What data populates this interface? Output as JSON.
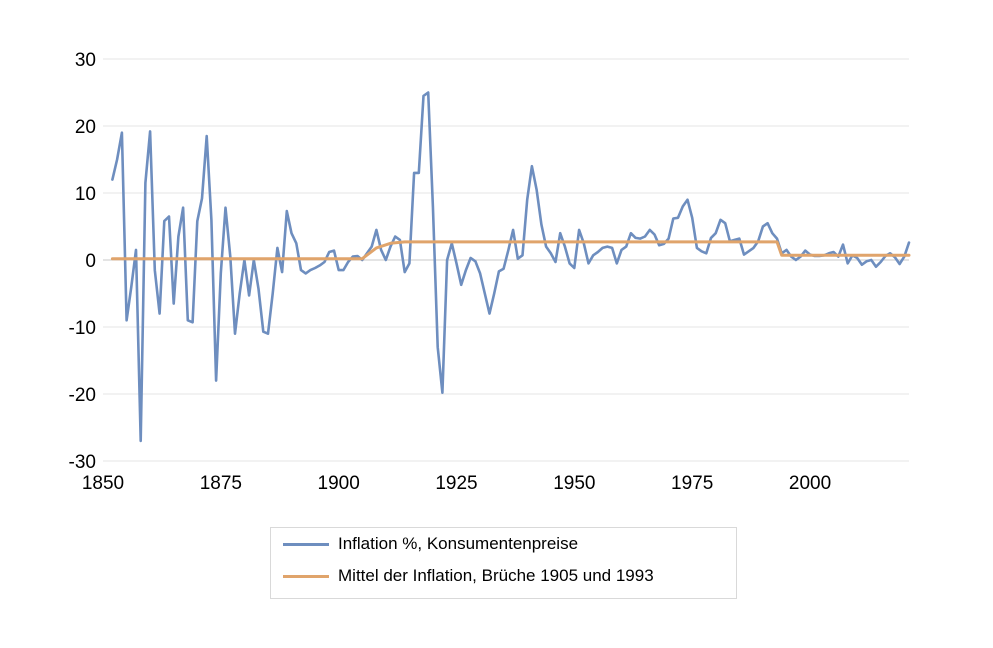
{
  "chart_data": {
    "type": "line",
    "title": "",
    "xlabel": "",
    "ylabel": "",
    "xlim": [
      1850,
      2021
    ],
    "ylim": [
      -30,
      30
    ],
    "xticks": [
      1850,
      1875,
      1900,
      1925,
      1950,
      1975,
      2000
    ],
    "yticks": [
      30,
      20,
      10,
      0,
      -10,
      -20,
      -30
    ],
    "grid": "horizontal",
    "legend_position": "bottom",
    "colors": {
      "inflation": "#6e8ebf",
      "mean": "#e0a46b",
      "grid": "#e6e6e6",
      "zero_line": "#c8c8c8"
    },
    "series": [
      {
        "name": "Inflation %, Konsumentenpreise",
        "x": [
          1852,
          1853,
          1854,
          1855,
          1856,
          1857,
          1858,
          1859,
          1860,
          1861,
          1862,
          1863,
          1864,
          1865,
          1866,
          1867,
          1868,
          1869,
          1870,
          1871,
          1872,
          1873,
          1874,
          1875,
          1876,
          1877,
          1878,
          1879,
          1880,
          1881,
          1882,
          1883,
          1884,
          1885,
          1886,
          1887,
          1888,
          1889,
          1890,
          1891,
          1892,
          1893,
          1894,
          1895,
          1896,
          1897,
          1898,
          1899,
          1900,
          1901,
          1902,
          1903,
          1904,
          1905,
          1906,
          1907,
          1908,
          1909,
          1910,
          1911,
          1912,
          1913,
          1914,
          1915,
          1916,
          1917,
          1918,
          1919,
          1920,
          1921,
          1922,
          1923,
          1924,
          1925,
          1926,
          1927,
          1928,
          1929,
          1930,
          1931,
          1932,
          1933,
          1934,
          1935,
          1936,
          1937,
          1938,
          1939,
          1940,
          1941,
          1942,
          1943,
          1944,
          1945,
          1946,
          1947,
          1948,
          1949,
          1950,
          1951,
          1952,
          1953,
          1954,
          1955,
          1956,
          1957,
          1958,
          1959,
          1960,
          1961,
          1962,
          1963,
          1964,
          1965,
          1966,
          1967,
          1968,
          1969,
          1970,
          1971,
          1972,
          1973,
          1974,
          1975,
          1976,
          1977,
          1978,
          1979,
          1980,
          1981,
          1982,
          1983,
          1984,
          1985,
          1986,
          1987,
          1988,
          1989,
          1990,
          1991,
          1992,
          1993,
          1994,
          1995,
          1996,
          1997,
          1998,
          1999,
          2000,
          2001,
          2002,
          2003,
          2004,
          2005,
          2006,
          2007,
          2008,
          2009,
          2010,
          2011,
          2012,
          2013,
          2014,
          2015,
          2016,
          2017,
          2018,
          2019,
          2020,
          2021
        ],
        "values": [
          12,
          15,
          19,
          -9,
          -4,
          1.5,
          -27,
          11.5,
          19.2,
          -1.5,
          -8,
          5.8,
          6.5,
          -6.5,
          3.5,
          7.8,
          -9,
          -9.3,
          5.8,
          9.2,
          18.5,
          6,
          -18,
          -2,
          7.8,
          0.5,
          -11,
          -5,
          0,
          -5.3,
          0,
          -4.3,
          -10.7,
          -11,
          -5,
          1.8,
          -1.8,
          7.3,
          4,
          2.5,
          -1.5,
          -2,
          -1.5,
          -1.2,
          -0.8,
          -0.3,
          1.2,
          1.4,
          -1.5,
          -1.5,
          -0.3,
          0.5,
          0.6,
          0,
          1,
          2,
          4.5,
          1.5,
          0,
          2,
          3.5,
          3,
          -1.8,
          -0.5,
          13,
          13,
          24.5,
          25,
          8,
          -13,
          -19.8,
          0,
          2.5,
          -0.5,
          -3.7,
          -1.5,
          0.3,
          -0.2,
          -2,
          -5,
          -8,
          -5,
          -1.7,
          -1.3,
          1.5,
          4.5,
          0.2,
          0.7,
          9,
          14,
          10.5,
          5.3,
          2,
          1,
          -0.3,
          4,
          2,
          -0.5,
          -1.2,
          4.5,
          2.5,
          -0.5,
          0.7,
          1.2,
          1.8,
          2,
          1.8,
          -0.5,
          1.5,
          2,
          4,
          3.3,
          3.2,
          3.5,
          4.5,
          3.8,
          2.2,
          2.4,
          3.2,
          6.2,
          6.3,
          8,
          9,
          6.3,
          1.8,
          1.3,
          1,
          3.3,
          4,
          6,
          5.5,
          2.8,
          3,
          3.2,
          0.8,
          1.3,
          1.8,
          2.8,
          5,
          5.5,
          4,
          3.2,
          1,
          1.5,
          0.5,
          0,
          0.5,
          1.4,
          0.8,
          0.6,
          0.6,
          0.7,
          1,
          1.2,
          0.5,
          2.3,
          -0.5,
          0.7,
          0.3,
          -0.7,
          -0.2,
          0,
          -1,
          -0.3,
          0.6,
          1,
          0.4,
          -0.6,
          0.5,
          2.6
        ]
      },
      {
        "name": "Mittel der Inflation, Brüche 1905 und 1993",
        "x": [
          1852,
          1905,
          1908,
          1911,
          1914,
          1993,
          1994,
          2021
        ],
        "values": [
          0.2,
          0.2,
          1.8,
          2.5,
          2.7,
          2.7,
          0.7,
          0.7
        ]
      }
    ]
  }
}
